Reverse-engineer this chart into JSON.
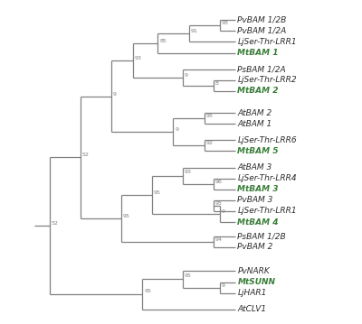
{
  "taxa": [
    {
      "name": "PvBAM 1/2B",
      "y": 22,
      "color": "#2d2d2d"
    },
    {
      "name": "PvBAM 1/2A",
      "y": 21,
      "color": "#2d2d2d"
    },
    {
      "name": "LjSer-Thr-LRR1",
      "y": 20,
      "color": "#2d2d2d"
    },
    {
      "name": "MtBAM 1",
      "y": 19,
      "color": "#3a7d3a"
    },
    {
      "name": "PsBAM 1/2A",
      "y": 17.5,
      "color": "#2d2d2d"
    },
    {
      "name": "LjSer-Thr-LRR2",
      "y": 16.5,
      "color": "#2d2d2d"
    },
    {
      "name": "MtBAM 2",
      "y": 15.5,
      "color": "#3a7d3a"
    },
    {
      "name": "AtBAM 2",
      "y": 13.5,
      "color": "#2d2d2d"
    },
    {
      "name": "AtBAM 1",
      "y": 12.5,
      "color": "#2d2d2d"
    },
    {
      "name": "LjSer-Thr-LRR6",
      "y": 11.0,
      "color": "#2d2d2d"
    },
    {
      "name": "MtBAM 5",
      "y": 10.0,
      "color": "#3a7d3a"
    },
    {
      "name": "AtBAM 3",
      "y": 8.5,
      "color": "#2d2d2d"
    },
    {
      "name": "LjSer-Thr-LRR4",
      "y": 7.5,
      "color": "#2d2d2d"
    },
    {
      "name": "MtBAM 3",
      "y": 6.5,
      "color": "#3a7d3a"
    },
    {
      "name": "PvBAM 3",
      "y": 5.5,
      "color": "#2d2d2d"
    },
    {
      "name": "LjSer-Thr-LRR1",
      "y": 4.5,
      "color": "#2d2d2d"
    },
    {
      "name": "MtBAM 4",
      "y": 3.5,
      "color": "#3a7d3a"
    },
    {
      "name": "PsBAM 1/2B",
      "y": 2.2,
      "color": "#2d2d2d"
    },
    {
      "name": "PvBAM 2",
      "y": 1.2,
      "color": "#2d2d2d"
    },
    {
      "name": "PvNARK",
      "y": -1.0,
      "color": "#2d2d2d"
    },
    {
      "name": "MtSUNN",
      "y": -2.0,
      "color": "#3a7d3a"
    },
    {
      "name": "LjHAR1",
      "y": -3.0,
      "color": "#2d2d2d"
    },
    {
      "name": "AtCLV1",
      "y": -4.5,
      "color": "#2d2d2d"
    }
  ],
  "tip_x": 7.5,
  "bg_color": "#ffffff",
  "line_color": "#808080",
  "line_width": 0.9,
  "bootstrap_color": "#808080",
  "bootstrap_fontsize": 4.5,
  "label_fontsize": 6.5,
  "xlim": [
    0.0,
    11.5
  ],
  "ylim": [
    -5.5,
    23.5
  ]
}
